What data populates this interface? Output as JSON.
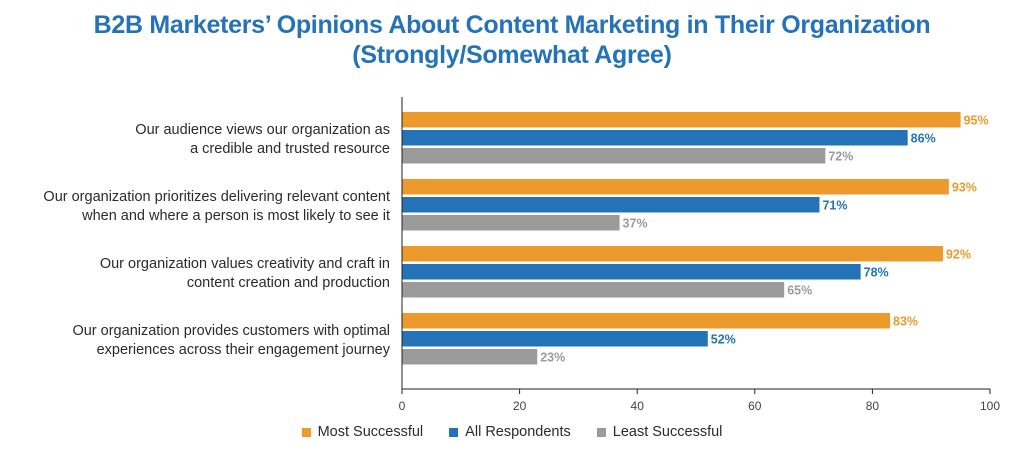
{
  "chart_data": {
    "type": "bar",
    "orientation": "horizontal",
    "title": [
      "B2B Marketers’ Opinions About Content Marketing in Their Organization",
      "(Strongly/Somewhat Agree)"
    ],
    "categories": [
      [
        "Our audience views our organization as",
        "a credible and trusted resource"
      ],
      [
        "Our organization prioritizes delivering relevant content",
        "when and where a person is most likely to see it"
      ],
      [
        "Our organization values creativity and craft in",
        "content creation and production"
      ],
      [
        "Our organization provides customers with optimal",
        "experiences across their engagement journey"
      ]
    ],
    "series": [
      {
        "name": "Most Successful",
        "color": "#eb9a2b",
        "values": [
          95,
          93,
          92,
          83
        ]
      },
      {
        "name": "All Respondents",
        "color": "#2473b9",
        "values": [
          86,
          71,
          78,
          52
        ]
      },
      {
        "name": "Least Successful",
        "color": "#9b9b9b",
        "values": [
          72,
          37,
          65,
          23
        ]
      }
    ],
    "value_suffix": "%",
    "xlim": [
      0,
      100
    ],
    "xticks": [
      0,
      20,
      40,
      60,
      80,
      100
    ],
    "grid": false,
    "legend_position": "bottom"
  }
}
